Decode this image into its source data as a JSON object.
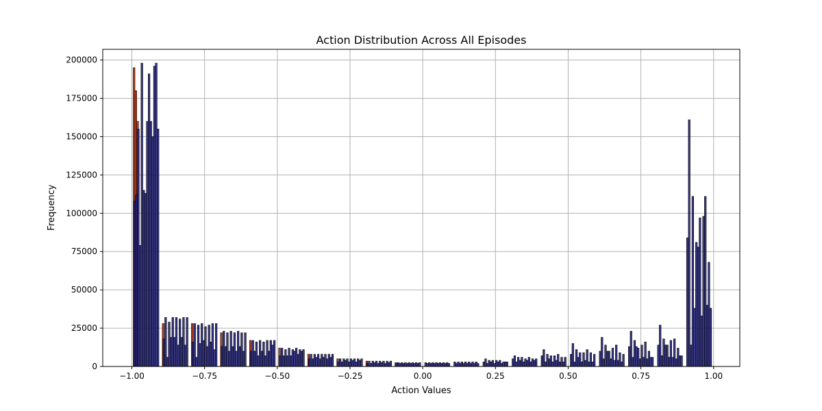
{
  "chart_data": {
    "type": "bar",
    "title": "Action Distribution Across All Episodes",
    "xlabel": "Action Values",
    "ylabel": "Frequency",
    "xlim": [
      -1.1,
      1.09
    ],
    "ylim": [
      0,
      207000
    ],
    "grid": true,
    "x_ticks": [
      -1.0,
      -0.75,
      -0.5,
      -0.25,
      0.0,
      0.25,
      0.5,
      0.75,
      1.0
    ],
    "x_tick_labels": [
      "−1.00",
      "−0.75",
      "−0.50",
      "−0.25",
      "0.00",
      "0.25",
      "0.50",
      "0.75",
      "1.00"
    ],
    "y_ticks": [
      0,
      25000,
      50000,
      75000,
      100000,
      125000,
      150000,
      175000,
      200000
    ],
    "y_tick_labels": [
      "0",
      "25000",
      "50000",
      "75000",
      "100000",
      "125000",
      "150000",
      "175000",
      "200000"
    ],
    "colors": {
      "front": "#24247d",
      "front_edge": "#000000",
      "back": "#c04020",
      "grid": "#b0b0b0"
    },
    "clusters": [
      {
        "x_start": -0.99,
        "x_end": -0.91,
        "back": [
          195000,
          180000,
          160000
        ],
        "front": [
          108000,
          112000,
          155000,
          79000,
          198000,
          115000,
          113000,
          160000,
          191000,
          160000,
          150000,
          196000,
          198000,
          155000
        ]
      },
      {
        "x_start": -0.89,
        "x_end": -0.81,
        "back": [
          28000
        ],
        "front": [
          18000,
          32000,
          6000,
          29000,
          19000,
          32000,
          19000,
          32000,
          14000,
          31000,
          19000,
          32000,
          14000,
          32000
        ]
      },
      {
        "x_start": -0.79,
        "x_end": -0.71,
        "back": [
          28000
        ],
        "front": [
          16000,
          28000,
          6000,
          27000,
          15000,
          28000,
          17000,
          26000,
          13000,
          27000,
          16000,
          28000,
          11000,
          28000
        ]
      },
      {
        "x_start": -0.69,
        "x_end": -0.61,
        "back": [
          22000
        ],
        "front": [
          13000,
          23000,
          13000,
          22000,
          10000,
          23000,
          13000,
          22000,
          10000,
          23000,
          13000,
          22000,
          10000,
          22000
        ]
      },
      {
        "x_start": -0.59,
        "x_end": -0.51,
        "back": [
          17000
        ],
        "front": [
          10000,
          17000,
          10000,
          16000,
          7000,
          17000,
          10000,
          16000,
          7000,
          17000,
          10000,
          17000,
          14000,
          17000
        ]
      },
      {
        "x_start": -0.49,
        "x_end": -0.41,
        "back": [
          12000
        ],
        "front": [
          7000,
          12000,
          7000,
          11000,
          7000,
          12000,
          7000,
          11000,
          10000,
          12000,
          8000,
          11000,
          10000,
          11000
        ]
      },
      {
        "x_start": -0.39,
        "x_end": -0.31,
        "back": [
          8000
        ],
        "front": [
          5000,
          8000,
          5000,
          8000,
          6000,
          8000,
          5000,
          8000,
          6000,
          8000,
          5000,
          8000,
          6000,
          8000
        ]
      },
      {
        "x_start": -0.29,
        "x_end": -0.21,
        "back": [
          5000
        ],
        "front": [
          3000,
          5000,
          3000,
          5000,
          4000,
          5000,
          3000,
          5000,
          4000,
          5000,
          3000,
          5000,
          4000,
          5000
        ]
      },
      {
        "x_start": -0.19,
        "x_end": -0.11,
        "back": [
          3500
        ],
        "front": [
          2000,
          3500,
          2000,
          3500,
          2500,
          3500,
          2000,
          3500,
          2500,
          3500,
          2000,
          3500,
          2500,
          3500
        ]
      },
      {
        "x_start": -0.09,
        "x_end": -0.01,
        "back": [
          2500
        ],
        "front": [
          2000,
          2500,
          2000,
          2500,
          2000,
          2500,
          2000,
          2500,
          2000,
          2500,
          2000,
          2500,
          2000,
          2500
        ]
      },
      {
        "x_start": 0.01,
        "x_end": 0.09,
        "back": [],
        "front": [
          2500,
          2000,
          2500,
          2000,
          2500,
          2000,
          2500,
          2000,
          2500,
          2000,
          2500,
          2000,
          2500,
          2000
        ]
      },
      {
        "x_start": 0.11,
        "x_end": 0.19,
        "back": [],
        "front": [
          3000,
          2000,
          3000,
          2000,
          3000,
          2000,
          3000,
          2000,
          3000,
          2000,
          3000,
          2000,
          3000,
          2000
        ]
      },
      {
        "x_start": 0.21,
        "x_end": 0.29,
        "back": [],
        "front": [
          3000,
          5000,
          2000,
          4000,
          3000,
          4000,
          2000,
          4000,
          3000,
          4000,
          2000,
          3000,
          3000,
          3000
        ]
      },
      {
        "x_start": 0.31,
        "x_end": 0.39,
        "back": [],
        "front": [
          5000,
          7000,
          3000,
          6000,
          4000,
          6000,
          3000,
          5000,
          4000,
          6000,
          3000,
          5000,
          4000,
          5000
        ]
      },
      {
        "x_start": 0.41,
        "x_end": 0.49,
        "back": [],
        "front": [
          7000,
          11000,
          3000,
          8000,
          5000,
          7000,
          3000,
          7000,
          4000,
          8000,
          3000,
          6000,
          3000,
          6000
        ]
      },
      {
        "x_start": 0.51,
        "x_end": 0.59,
        "back": [],
        "front": [
          8000,
          15000,
          3000,
          11000,
          6000,
          9000,
          3000,
          9000,
          4000,
          11000,
          3000,
          9000,
          3000,
          8000
        ]
      },
      {
        "x_start": 0.61,
        "x_end": 0.69,
        "back": [],
        "front": [
          10000,
          19000,
          5000,
          14000,
          10000,
          10000,
          5000,
          12000,
          4000,
          14000,
          4000,
          9000,
          3000,
          8000
        ]
      },
      {
        "x_start": 0.71,
        "x_end": 0.79,
        "back": [],
        "front": [
          13000,
          23000,
          6000,
          17000,
          13000,
          12000,
          5000,
          14000,
          6000,
          16000,
          5000,
          10000,
          6000,
          6000
        ]
      },
      {
        "x_start": 0.81,
        "x_end": 0.89,
        "back": [],
        "front": [
          14000,
          27000,
          7000,
          18000,
          14000,
          14000,
          6000,
          17000,
          6000,
          18000,
          5000,
          12000,
          7000,
          7000
        ]
      },
      {
        "x_start": 0.91,
        "x_end": 0.99,
        "back": [],
        "front": [
          84000,
          161000,
          14000,
          111000,
          38000,
          81000,
          78000,
          97000,
          33000,
          98000,
          111000,
          40000,
          68000,
          38000
        ]
      }
    ]
  }
}
